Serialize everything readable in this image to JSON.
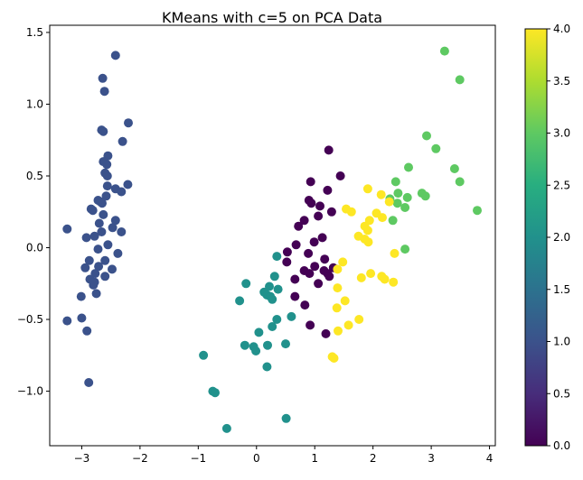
{
  "chart_data": {
    "type": "scatter",
    "title": "KMeans with c=5 on PCA Data",
    "xlabel": "",
    "ylabel": "",
    "xlim": [
      -3.55,
      4.1
    ],
    "ylim": [
      -1.38,
      1.55
    ],
    "x_ticks": [
      -3,
      -2,
      -1,
      0,
      1,
      2,
      3,
      4
    ],
    "y_ticks": [
      -1.0,
      -0.5,
      0.0,
      0.5,
      1.0,
      1.5
    ],
    "x_tick_labels": [
      "−3",
      "−2",
      "−1",
      "0",
      "1",
      "2",
      "3",
      "4"
    ],
    "y_tick_labels": [
      "−1.0",
      "−0.5",
      "0.0",
      "0.5",
      "1.0",
      "1.5"
    ],
    "grid": false,
    "colorbar": {
      "colormap": "viridis",
      "range": [
        0.0,
        4.0
      ],
      "ticks": [
        0.0,
        0.5,
        1.0,
        1.5,
        2.0,
        2.5,
        3.0,
        3.5,
        4.0
      ],
      "tick_labels": [
        "0.0",
        "0.5",
        "1.0",
        "1.5",
        "2.0",
        "2.5",
        "3.0",
        "3.5",
        "4.0"
      ]
    },
    "cluster_colors": [
      "#440154",
      "#3b528b",
      "#21918c",
      "#5ec962",
      "#fde725"
    ],
    "points": [
      {
        "x": -2.42,
        "y": 1.34,
        "c": 1
      },
      {
        "x": -2.64,
        "y": 1.18,
        "c": 1
      },
      {
        "x": -2.61,
        "y": 1.09,
        "c": 1
      },
      {
        "x": -2.2,
        "y": 0.87,
        "c": 1
      },
      {
        "x": -2.66,
        "y": 0.82,
        "c": 1
      },
      {
        "x": -2.63,
        "y": 0.81,
        "c": 1
      },
      {
        "x": -2.3,
        "y": 0.74,
        "c": 1
      },
      {
        "x": -2.55,
        "y": 0.64,
        "c": 1
      },
      {
        "x": -2.63,
        "y": 0.6,
        "c": 1
      },
      {
        "x": -2.57,
        "y": 0.58,
        "c": 1
      },
      {
        "x": -2.6,
        "y": 0.52,
        "c": 1
      },
      {
        "x": -2.56,
        "y": 0.5,
        "c": 1
      },
      {
        "x": -2.56,
        "y": 0.43,
        "c": 1
      },
      {
        "x": -2.21,
        "y": 0.44,
        "c": 1
      },
      {
        "x": -2.42,
        "y": 0.41,
        "c": 1
      },
      {
        "x": -2.32,
        "y": 0.39,
        "c": 1
      },
      {
        "x": -2.58,
        "y": 0.36,
        "c": 1
      },
      {
        "x": -2.72,
        "y": 0.33,
        "c": 1
      },
      {
        "x": -2.68,
        "y": 0.32,
        "c": 1
      },
      {
        "x": -2.65,
        "y": 0.31,
        "c": 1
      },
      {
        "x": -2.84,
        "y": 0.27,
        "c": 1
      },
      {
        "x": -2.81,
        "y": 0.26,
        "c": 1
      },
      {
        "x": -2.63,
        "y": 0.23,
        "c": 1
      },
      {
        "x": -2.42,
        "y": 0.19,
        "c": 1
      },
      {
        "x": -2.7,
        "y": 0.17,
        "c": 1
      },
      {
        "x": -2.47,
        "y": 0.14,
        "c": 1
      },
      {
        "x": -2.32,
        "y": 0.11,
        "c": 1
      },
      {
        "x": -2.66,
        "y": 0.11,
        "c": 1
      },
      {
        "x": -2.78,
        "y": 0.08,
        "c": 1
      },
      {
        "x": -2.92,
        "y": 0.07,
        "c": 1
      },
      {
        "x": -2.55,
        "y": 0.02,
        "c": 1
      },
      {
        "x": -2.72,
        "y": -0.01,
        "c": 1
      },
      {
        "x": -2.38,
        "y": -0.04,
        "c": 1
      },
      {
        "x": -2.6,
        "y": -0.09,
        "c": 1
      },
      {
        "x": -2.87,
        "y": -0.09,
        "c": 1
      },
      {
        "x": -2.71,
        "y": -0.13,
        "c": 1
      },
      {
        "x": -2.94,
        "y": -0.14,
        "c": 1
      },
      {
        "x": -2.48,
        "y": -0.15,
        "c": 1
      },
      {
        "x": -2.77,
        "y": -0.18,
        "c": 1
      },
      {
        "x": -2.6,
        "y": -0.2,
        "c": 1
      },
      {
        "x": -2.86,
        "y": -0.22,
        "c": 1
      },
      {
        "x": -2.78,
        "y": -0.24,
        "c": 1
      },
      {
        "x": -2.8,
        "y": -0.26,
        "c": 1
      },
      {
        "x": -2.75,
        "y": -0.32,
        "c": 1
      },
      {
        "x": -3.01,
        "y": -0.34,
        "c": 1
      },
      {
        "x": -3.25,
        "y": 0.13,
        "c": 1
      },
      {
        "x": -3.25,
        "y": -0.51,
        "c": 1
      },
      {
        "x": -3.0,
        "y": -0.49,
        "c": 1
      },
      {
        "x": -2.91,
        "y": -0.58,
        "c": 1
      },
      {
        "x": -2.88,
        "y": -0.94,
        "c": 1
      },
      {
        "x": 1.24,
        "y": 0.68,
        "c": 0
      },
      {
        "x": 1.44,
        "y": 0.5,
        "c": 0
      },
      {
        "x": 0.93,
        "y": 0.46,
        "c": 0
      },
      {
        "x": 1.22,
        "y": 0.4,
        "c": 0
      },
      {
        "x": 0.9,
        "y": 0.33,
        "c": 0
      },
      {
        "x": 0.94,
        "y": 0.31,
        "c": 0
      },
      {
        "x": 1.09,
        "y": 0.29,
        "c": 0
      },
      {
        "x": 1.29,
        "y": 0.25,
        "c": 0
      },
      {
        "x": 1.06,
        "y": 0.22,
        "c": 0
      },
      {
        "x": 0.82,
        "y": 0.19,
        "c": 0
      },
      {
        "x": 0.72,
        "y": 0.15,
        "c": 0
      },
      {
        "x": 1.13,
        "y": 0.07,
        "c": 0
      },
      {
        "x": 0.99,
        "y": 0.04,
        "c": 0
      },
      {
        "x": 0.68,
        "y": 0.02,
        "c": 0
      },
      {
        "x": 0.53,
        "y": -0.03,
        "c": 0
      },
      {
        "x": 0.89,
        "y": -0.04,
        "c": 0
      },
      {
        "x": 1.17,
        "y": -0.08,
        "c": 0
      },
      {
        "x": 0.52,
        "y": -0.1,
        "c": 0
      },
      {
        "x": 1.0,
        "y": -0.13,
        "c": 0
      },
      {
        "x": 1.32,
        "y": -0.14,
        "c": 0
      },
      {
        "x": 0.82,
        "y": -0.16,
        "c": 0
      },
      {
        "x": 0.91,
        "y": -0.18,
        "c": 0
      },
      {
        "x": 1.16,
        "y": -0.16,
        "c": 0
      },
      {
        "x": 1.22,
        "y": -0.18,
        "c": 0
      },
      {
        "x": 1.25,
        "y": -0.2,
        "c": 0
      },
      {
        "x": 0.66,
        "y": -0.22,
        "c": 0
      },
      {
        "x": 1.06,
        "y": -0.25,
        "c": 0
      },
      {
        "x": 0.66,
        "y": -0.34,
        "c": 0
      },
      {
        "x": 0.83,
        "y": -0.4,
        "c": 0
      },
      {
        "x": 0.92,
        "y": -0.54,
        "c": 0
      },
      {
        "x": 1.19,
        "y": -0.6,
        "c": 0
      },
      {
        "x": 0.35,
        "y": -0.06,
        "c": 2
      },
      {
        "x": 0.31,
        "y": -0.2,
        "c": 2
      },
      {
        "x": -0.18,
        "y": -0.25,
        "c": 2
      },
      {
        "x": 0.22,
        "y": -0.27,
        "c": 2
      },
      {
        "x": 0.37,
        "y": -0.29,
        "c": 2
      },
      {
        "x": 0.13,
        "y": -0.31,
        "c": 2
      },
      {
        "x": 0.18,
        "y": -0.33,
        "c": 2
      },
      {
        "x": 0.24,
        "y": -0.34,
        "c": 2
      },
      {
        "x": 0.27,
        "y": -0.36,
        "c": 2
      },
      {
        "x": -0.29,
        "y": -0.37,
        "c": 2
      },
      {
        "x": 0.35,
        "y": -0.5,
        "c": 2
      },
      {
        "x": 0.6,
        "y": -0.48,
        "c": 2
      },
      {
        "x": 0.27,
        "y": -0.55,
        "c": 2
      },
      {
        "x": 0.04,
        "y": -0.59,
        "c": 2
      },
      {
        "x": 0.19,
        "y": -0.68,
        "c": 2
      },
      {
        "x": 0.5,
        "y": -0.67,
        "c": 2
      },
      {
        "x": -0.2,
        "y": -0.68,
        "c": 2
      },
      {
        "x": -0.05,
        "y": -0.69,
        "c": 2
      },
      {
        "x": -0.01,
        "y": -0.72,
        "c": 2
      },
      {
        "x": -0.91,
        "y": -0.75,
        "c": 2
      },
      {
        "x": 0.18,
        "y": -0.83,
        "c": 2
      },
      {
        "x": -0.75,
        "y": -1.0,
        "c": 2
      },
      {
        "x": -0.71,
        "y": -1.01,
        "c": 2
      },
      {
        "x": -0.51,
        "y": -1.26,
        "c": 2
      },
      {
        "x": 0.51,
        "y": -1.19,
        "c": 2
      },
      {
        "x": 3.23,
        "y": 1.37,
        "c": 3
      },
      {
        "x": 3.49,
        "y": 1.17,
        "c": 3
      },
      {
        "x": 2.92,
        "y": 0.78,
        "c": 3
      },
      {
        "x": 3.08,
        "y": 0.69,
        "c": 3
      },
      {
        "x": 2.61,
        "y": 0.56,
        "c": 3
      },
      {
        "x": 3.4,
        "y": 0.55,
        "c": 3
      },
      {
        "x": 2.39,
        "y": 0.46,
        "c": 3
      },
      {
        "x": 3.49,
        "y": 0.46,
        "c": 3
      },
      {
        "x": 2.43,
        "y": 0.38,
        "c": 3
      },
      {
        "x": 2.84,
        "y": 0.38,
        "c": 3
      },
      {
        "x": 2.9,
        "y": 0.36,
        "c": 3
      },
      {
        "x": 2.59,
        "y": 0.35,
        "c": 3
      },
      {
        "x": 2.29,
        "y": 0.34,
        "c": 3
      },
      {
        "x": 2.42,
        "y": 0.31,
        "c": 3
      },
      {
        "x": 2.55,
        "y": 0.28,
        "c": 3
      },
      {
        "x": 3.79,
        "y": 0.26,
        "c": 3
      },
      {
        "x": 2.34,
        "y": 0.19,
        "c": 3
      },
      {
        "x": 2.55,
        "y": -0.01,
        "c": 3
      },
      {
        "x": 1.91,
        "y": 0.41,
        "c": 4
      },
      {
        "x": 2.14,
        "y": 0.37,
        "c": 4
      },
      {
        "x": 2.28,
        "y": 0.32,
        "c": 4
      },
      {
        "x": 1.54,
        "y": 0.27,
        "c": 4
      },
      {
        "x": 1.63,
        "y": 0.25,
        "c": 4
      },
      {
        "x": 2.06,
        "y": 0.24,
        "c": 4
      },
      {
        "x": 2.16,
        "y": 0.21,
        "c": 4
      },
      {
        "x": 1.94,
        "y": 0.19,
        "c": 4
      },
      {
        "x": 1.86,
        "y": 0.15,
        "c": 4
      },
      {
        "x": 1.91,
        "y": 0.12,
        "c": 4
      },
      {
        "x": 1.75,
        "y": 0.08,
        "c": 4
      },
      {
        "x": 1.86,
        "y": 0.06,
        "c": 4
      },
      {
        "x": 1.92,
        "y": 0.04,
        "c": 4
      },
      {
        "x": 2.37,
        "y": -0.04,
        "c": 4
      },
      {
        "x": 1.48,
        "y": -0.1,
        "c": 4
      },
      {
        "x": 1.96,
        "y": -0.18,
        "c": 4
      },
      {
        "x": 1.39,
        "y": -0.15,
        "c": 4
      },
      {
        "x": 2.15,
        "y": -0.2,
        "c": 4
      },
      {
        "x": 1.8,
        "y": -0.21,
        "c": 4
      },
      {
        "x": 2.2,
        "y": -0.22,
        "c": 4
      },
      {
        "x": 2.35,
        "y": -0.24,
        "c": 4
      },
      {
        "x": 1.39,
        "y": -0.28,
        "c": 4
      },
      {
        "x": 1.52,
        "y": -0.37,
        "c": 4
      },
      {
        "x": 1.38,
        "y": -0.42,
        "c": 4
      },
      {
        "x": 1.76,
        "y": -0.5,
        "c": 4
      },
      {
        "x": 1.58,
        "y": -0.54,
        "c": 4
      },
      {
        "x": 1.4,
        "y": -0.58,
        "c": 4
      },
      {
        "x": 1.3,
        "y": -0.76,
        "c": 4
      },
      {
        "x": 1.33,
        "y": -0.77,
        "c": 4
      }
    ]
  }
}
